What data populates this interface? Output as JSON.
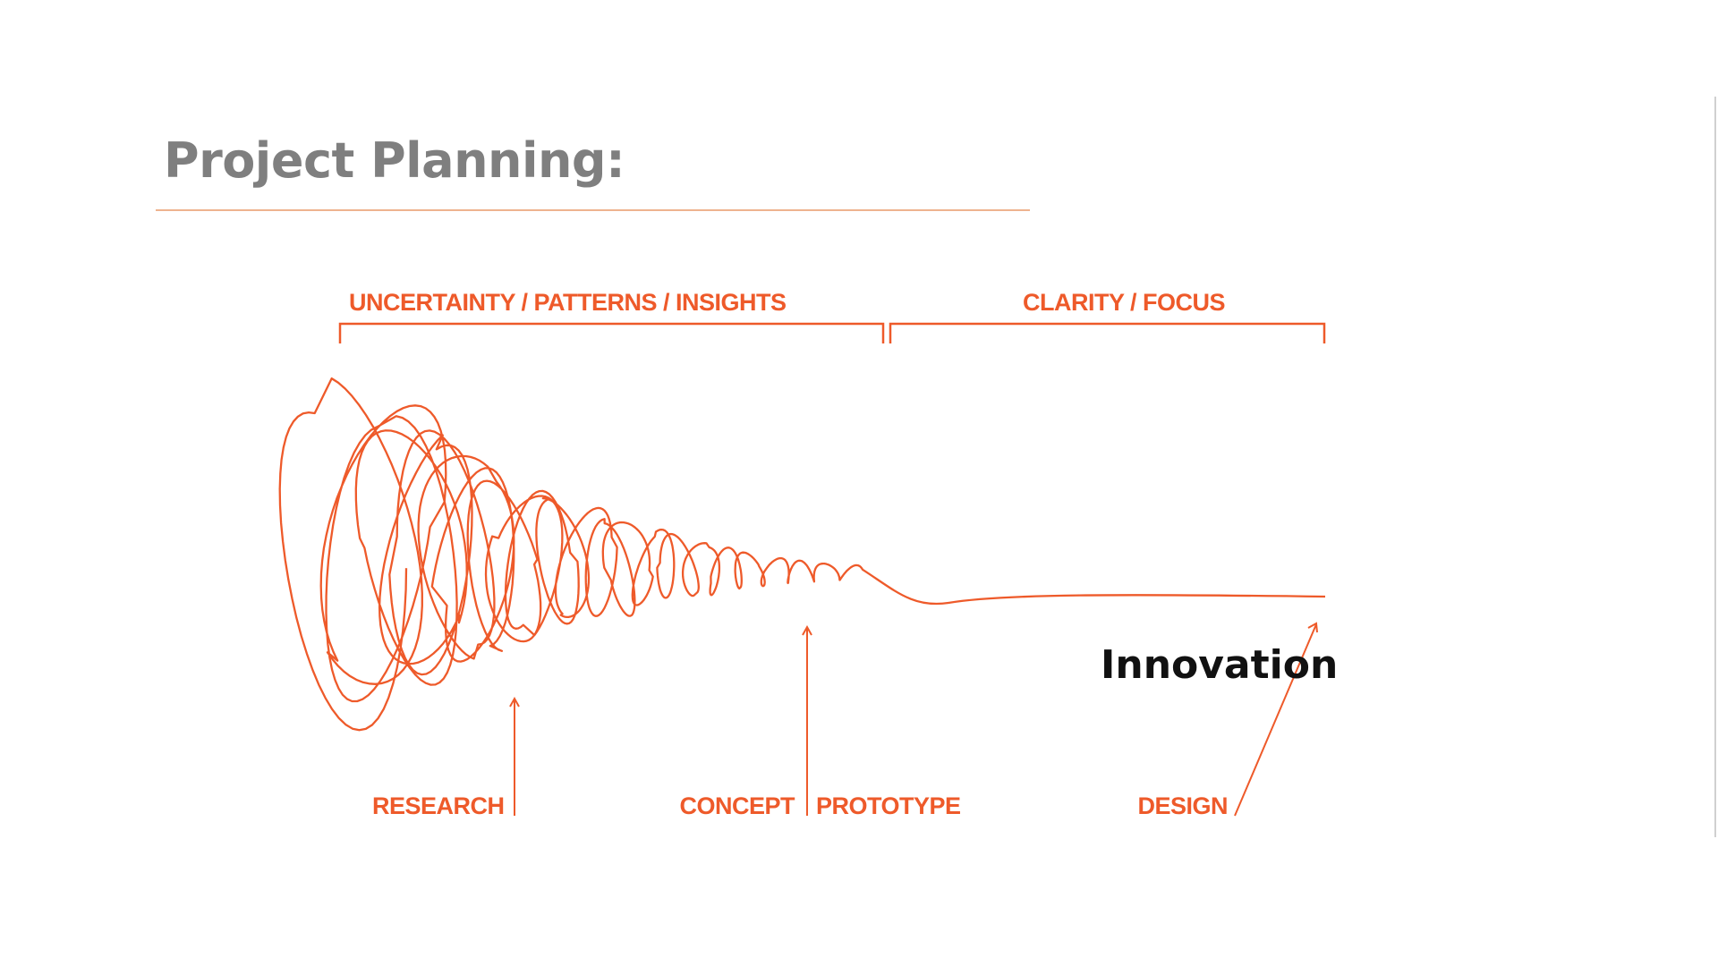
{
  "slide": {
    "title": "Project Planning:"
  },
  "diagram": {
    "phases": [
      {
        "label": "UNCERTAINTY / PATTERNS / INSIGHTS"
      },
      {
        "label": "CLARITY / FOCUS"
      }
    ],
    "milestones": {
      "research": "RESEARCH",
      "concept": "CONCEPT",
      "prototype": "PROTOTYPE",
      "design": "DESIGN"
    },
    "outcome": "Innovation",
    "accent_color": "#ee5a2a",
    "title_color": "#7f7f7f",
    "rule_color": "#eeb38f"
  }
}
